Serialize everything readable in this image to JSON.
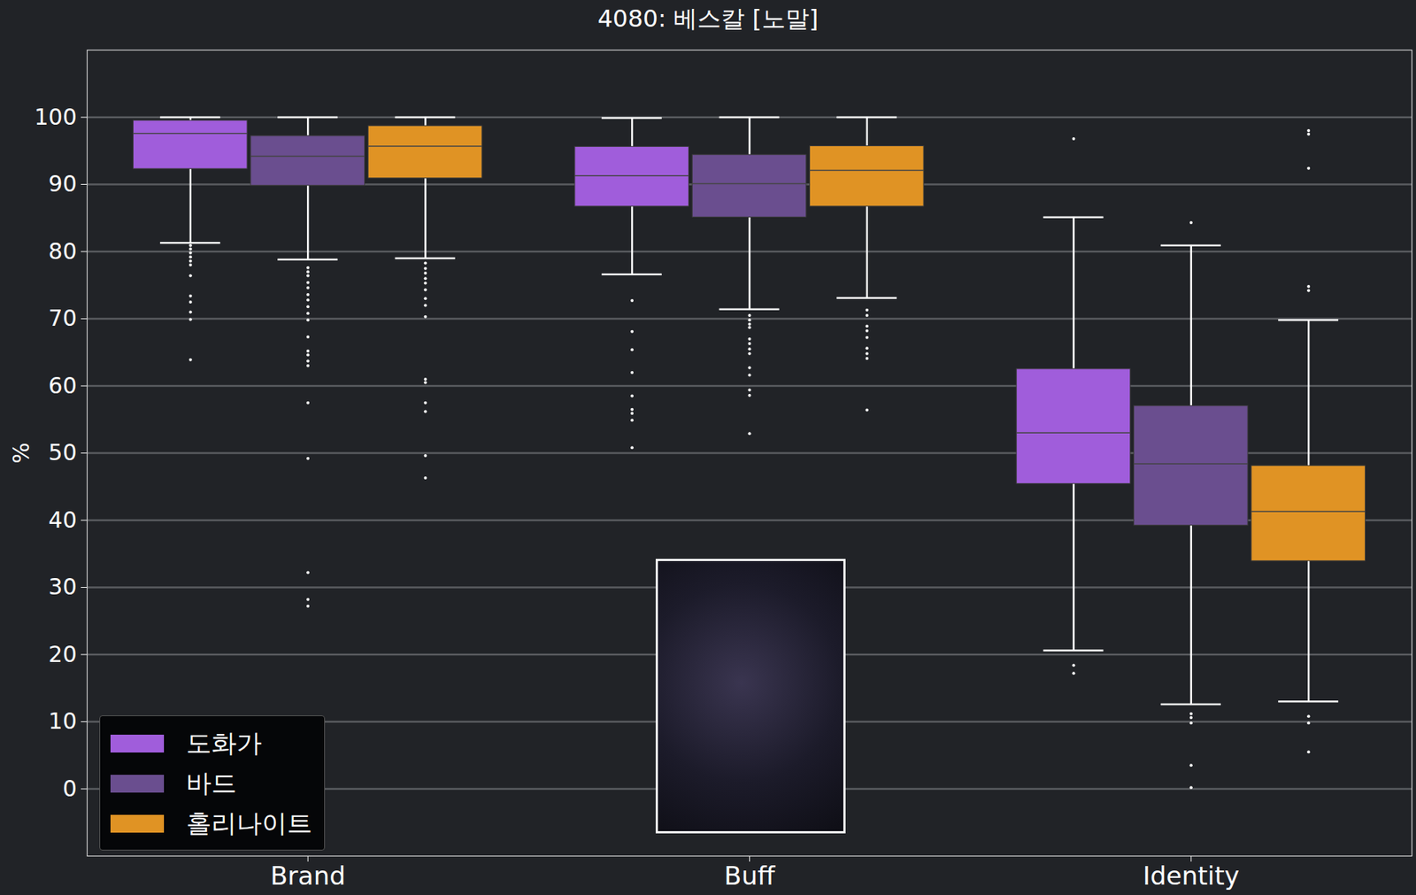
{
  "chart_data": {
    "type": "box",
    "title": "4080: 베스칼 [노말]",
    "y_label": "%",
    "categories": [
      "Brand",
      "Buff",
      "Identity"
    ],
    "ylim": [
      -10,
      110
    ],
    "yticks": [
      0,
      10,
      20,
      30,
      40,
      50,
      60,
      70,
      80,
      90,
      100
    ],
    "grid": true,
    "legend": "lower left",
    "series": [
      {
        "name": "도화가",
        "color": "#a05ddb",
        "boxes": [
          {
            "whisker_low": 81.3,
            "q1": 92.3,
            "median": 97.6,
            "q3": 99.5,
            "whisker_high": 100,
            "outliers": [
              80.9,
              80.4,
              79.8,
              79.2,
              78.6,
              78.0,
              76.4,
              73.4,
              72.5,
              71.0,
              69.9,
              63.9
            ]
          },
          {
            "whisker_low": 76.6,
            "q1": 86.7,
            "median": 91.3,
            "q3": 95.6,
            "whisker_high": 99.9,
            "outliers": [
              72.7,
              68.1,
              65.4,
              62.0,
              58.5,
              56.5,
              55.9,
              54.9,
              50.8
            ]
          },
          {
            "whisker_low": 20.6,
            "q1": 45.4,
            "median": 53.0,
            "q3": 62.5,
            "whisker_high": 85.1,
            "outliers": [
              96.8,
              18.4,
              17.2
            ]
          }
        ]
      },
      {
        "name": "바드",
        "color": "#6a4e8f",
        "boxes": [
          {
            "whisker_low": 78.8,
            "q1": 89.8,
            "median": 94.2,
            "q3": 97.2,
            "whisker_high": 100,
            "outliers": [
              77.6,
              77.0,
              76.4,
              75.4,
              74.6,
              73.6,
              72.8,
              71.8,
              70.8,
              69.8,
              67.3,
              65.2,
              64.6,
              63.7,
              63.0,
              57.5,
              49.2,
              32.2,
              28.2,
              27.2
            ]
          },
          {
            "whisker_low": 71.4,
            "q1": 85.1,
            "median": 90.1,
            "q3": 94.4,
            "whisker_high": 100,
            "outliers": [
              70.5,
              69.8,
              69.2,
              68.7,
              67.0,
              66.3,
              65.5,
              64.8,
              62.7,
              61.6,
              59.4,
              58.6,
              52.9
            ]
          },
          {
            "whisker_low": 12.6,
            "q1": 39.2,
            "median": 48.4,
            "q3": 57.0,
            "whisker_high": 80.9,
            "outliers": [
              84.3,
              11.2,
              10.6,
              9.8,
              3.5,
              0.2
            ]
          }
        ]
      },
      {
        "name": "홀리나이트",
        "color": "#e09324",
        "boxes": [
          {
            "whisker_low": 79.0,
            "q1": 90.9,
            "median": 95.7,
            "q3": 98.7,
            "whisker_high": 100,
            "outliers": [
              78.3,
              77.5,
              76.8,
              76.0,
              75.3,
              74.3,
              73.0,
              72.0,
              70.3,
              61.0,
              60.5,
              57.5,
              56.2,
              49.6,
              46.3
            ]
          },
          {
            "whisker_low": 73.1,
            "q1": 86.7,
            "median": 92.1,
            "q3": 95.7,
            "whisker_high": 100,
            "outliers": [
              71.3,
              70.5,
              68.9,
              68.2,
              67.2,
              65.6,
              64.8,
              64.1,
              56.4
            ]
          },
          {
            "whisker_low": 13.0,
            "q1": 33.9,
            "median": 41.3,
            "q3": 48.1,
            "whisker_high": 69.8,
            "outliers": [
              98.0,
              97.5,
              92.4,
              74.8,
              74.2,
              10.8,
              9.8,
              5.5
            ]
          }
        ]
      }
    ]
  }
}
